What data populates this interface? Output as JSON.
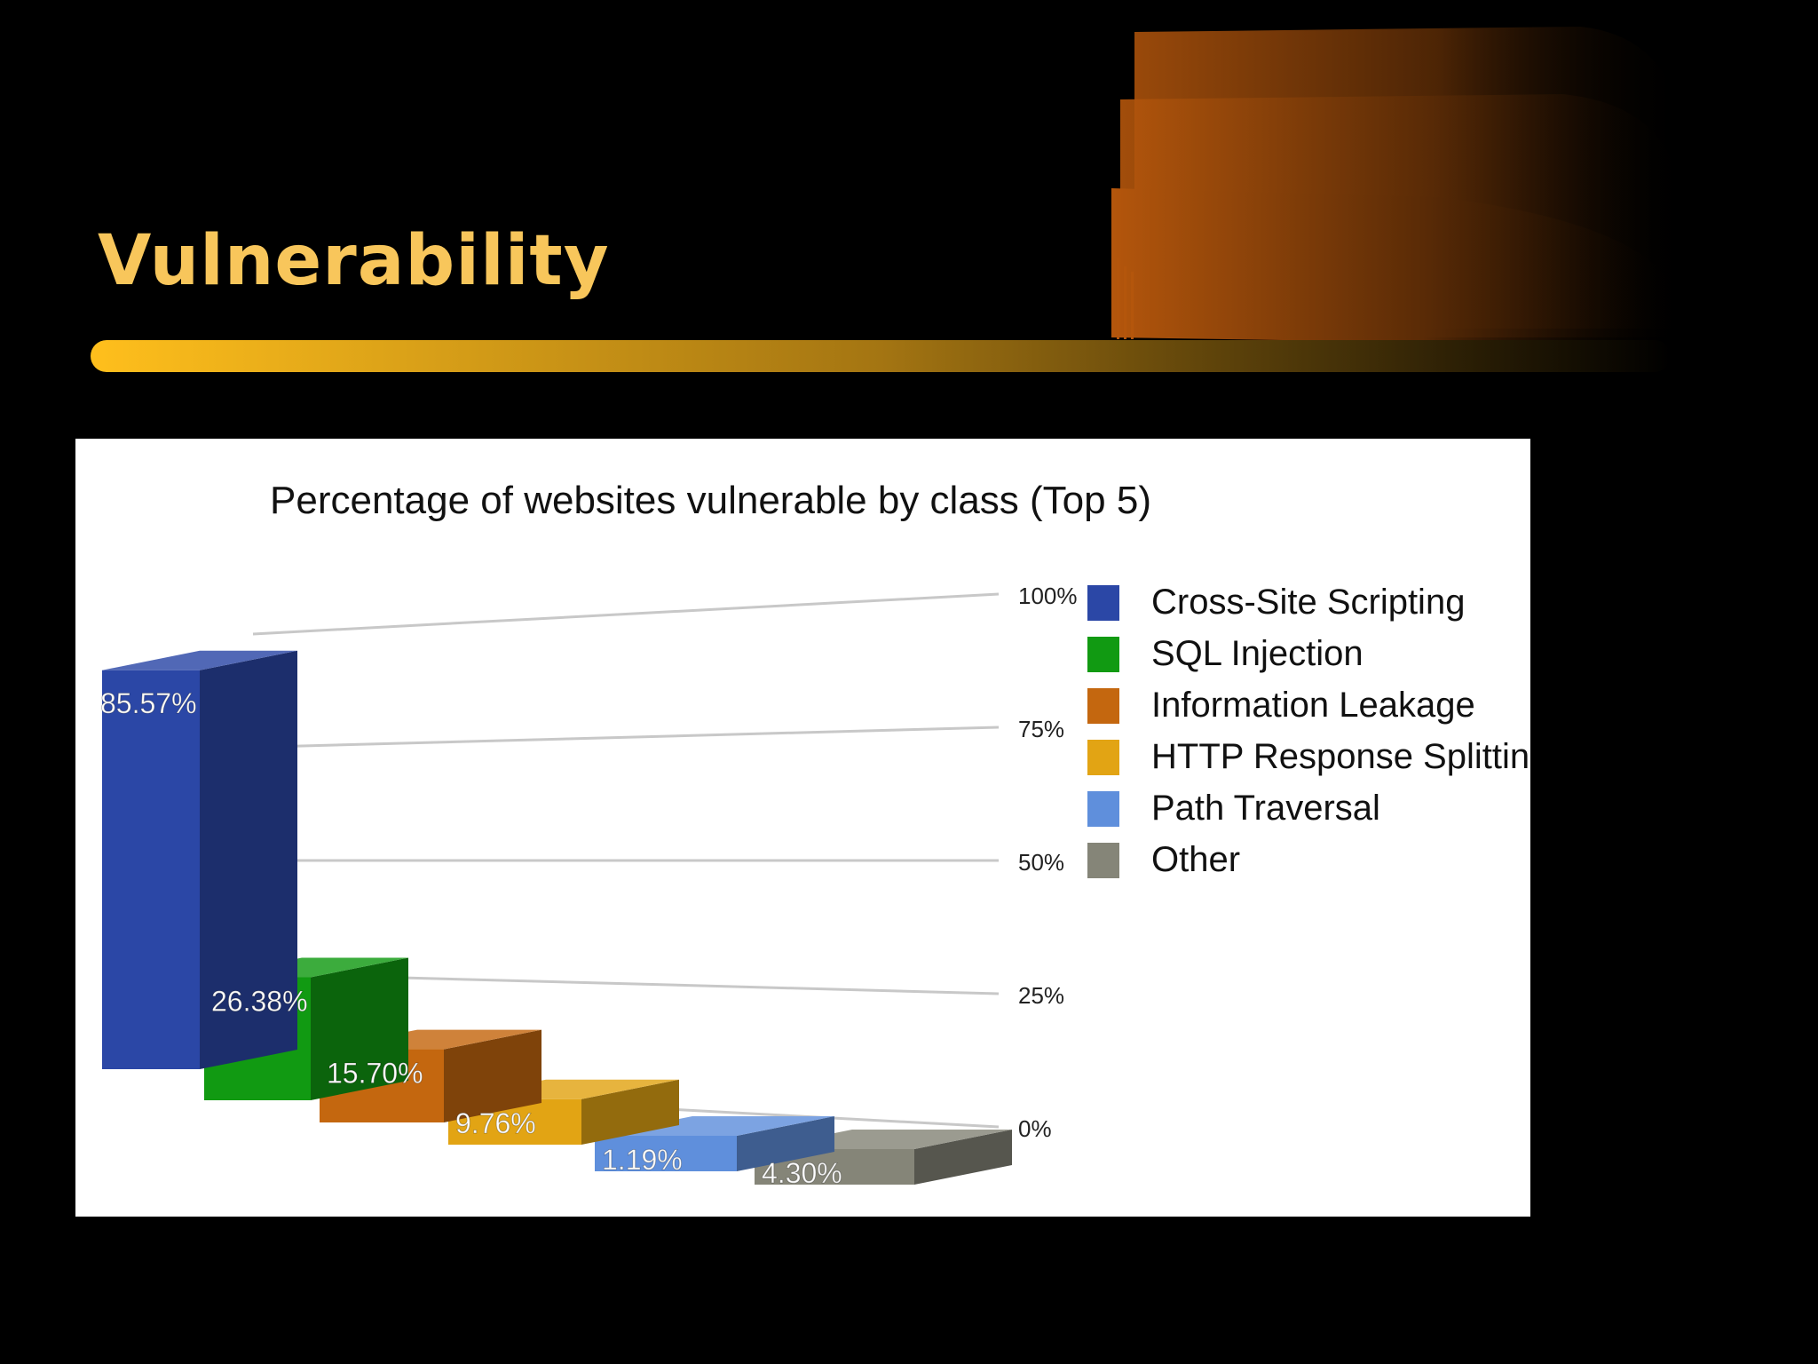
{
  "slide": {
    "title": "Vulnerability",
    "title_color": "#f8c65b",
    "background_color": "#000000",
    "accent_color": "#b4560c"
  },
  "chart_data": {
    "type": "bar",
    "title": "Percentage of websites vulnerable by class (Top 5)",
    "style": "3d",
    "categories": [
      "Cross-Site Scripting",
      "SQL Injection",
      "Information Leakage",
      "HTTP Response Splitting",
      "Path Traversal",
      "Other"
    ],
    "values": [
      85.57,
      26.38,
      15.7,
      9.76,
      1.19,
      4.3
    ],
    "data_labels": [
      "85.57%",
      "26.38%",
      "15.70%",
      "9.76%",
      "1.19%",
      "4.30%"
    ],
    "colors": [
      "#2b47a6",
      "#119a12",
      "#c4670f",
      "#e2a414",
      "#5f8fdc",
      "#858578"
    ],
    "ylim": [
      0,
      100
    ],
    "yticks": [
      0,
      25,
      50,
      75,
      100
    ],
    "ytick_labels": [
      "0%",
      "25%",
      "50%",
      "75%",
      "100%"
    ],
    "grid": true,
    "legend": {
      "position": "right",
      "entries": [
        "Cross-Site Scripting",
        "SQL Injection",
        "Information Leakage",
        "HTTP Response Splitting",
        "Path Traversal",
        "Other"
      ]
    }
  }
}
